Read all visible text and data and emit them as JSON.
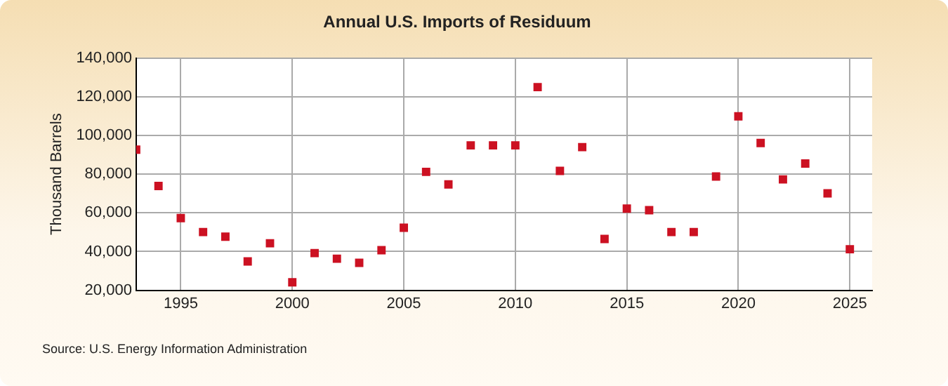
{
  "chart_data": {
    "type": "scatter",
    "title": "Annual U.S. Imports of Residuum",
    "ylabel": "Thousand Barrels",
    "annotations": [
      "Source: U.S. Energy Information Administration"
    ],
    "x": [
      1993,
      1994,
      1995,
      1996,
      1997,
      1998,
      1999,
      2000,
      2001,
      2002,
      2003,
      2004,
      2005,
      2006,
      2007,
      2008,
      2009,
      2010,
      2011,
      2012,
      2013,
      2014,
      2015,
      2016,
      2017,
      2018,
      2019,
      2020,
      2021,
      2022,
      2023,
      2024,
      2025
    ],
    "series": [
      {
        "color": "#cc1122",
        "values": [
          92700,
          73900,
          57300,
          50100,
          47700,
          34900,
          44300,
          24100,
          39200,
          36300,
          34200,
          40700,
          52300,
          81200,
          74700,
          94900,
          94900,
          94900,
          125000,
          81700,
          94000,
          46500,
          62200,
          61400,
          50100,
          50100,
          78800,
          109900,
          96100,
          77300,
          85500,
          70100,
          41200
        ]
      }
    ],
    "xlim": [
      1993,
      2026
    ],
    "xticks": [
      1995,
      2000,
      2005,
      2010,
      2015,
      2020,
      2025
    ],
    "ylim": [
      20000,
      140000
    ],
    "yticks": [
      {
        "value": 20000,
        "label": "20,000"
      },
      {
        "value": 40000,
        "label": "40,000"
      },
      {
        "value": 60000,
        "label": "60,000"
      },
      {
        "value": 80000,
        "label": "80,000"
      },
      {
        "value": 100000,
        "label": "100,000"
      },
      {
        "value": 120000,
        "label": "120,000"
      },
      {
        "value": 140000,
        "label": "140,000"
      }
    ],
    "grid": true,
    "legend": false,
    "marker": "square"
  }
}
